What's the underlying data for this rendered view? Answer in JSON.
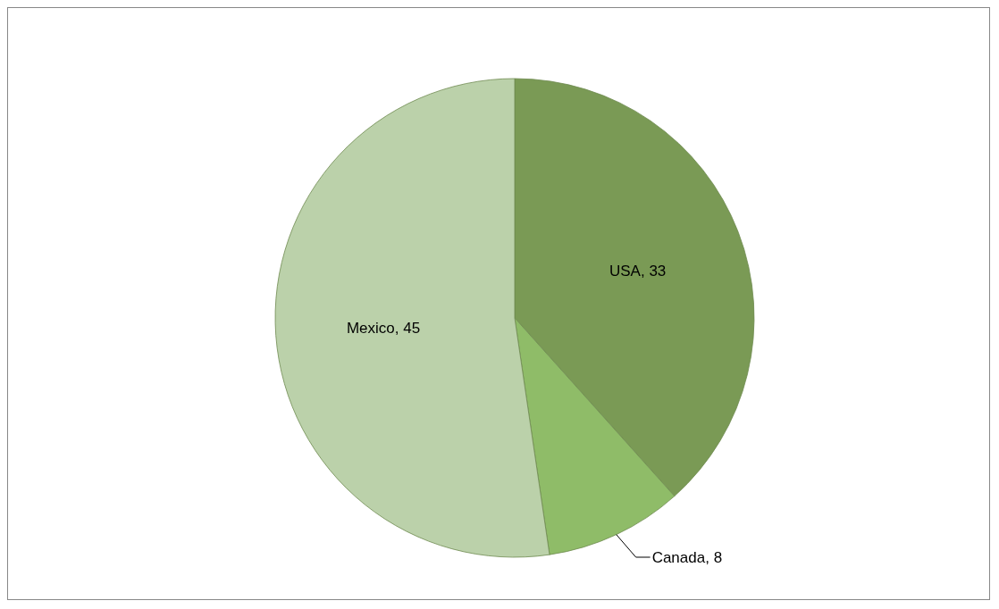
{
  "chart_data": {
    "type": "pie",
    "categories": [
      "USA",
      "Canada",
      "Mexico"
    ],
    "values": [
      33,
      8,
      45
    ],
    "colors": [
      "#7a9a55",
      "#8fbc68",
      "#bbd1aa"
    ],
    "value_labels": [
      ", 33",
      ", 8",
      ", 45"
    ],
    "legend": false
  }
}
